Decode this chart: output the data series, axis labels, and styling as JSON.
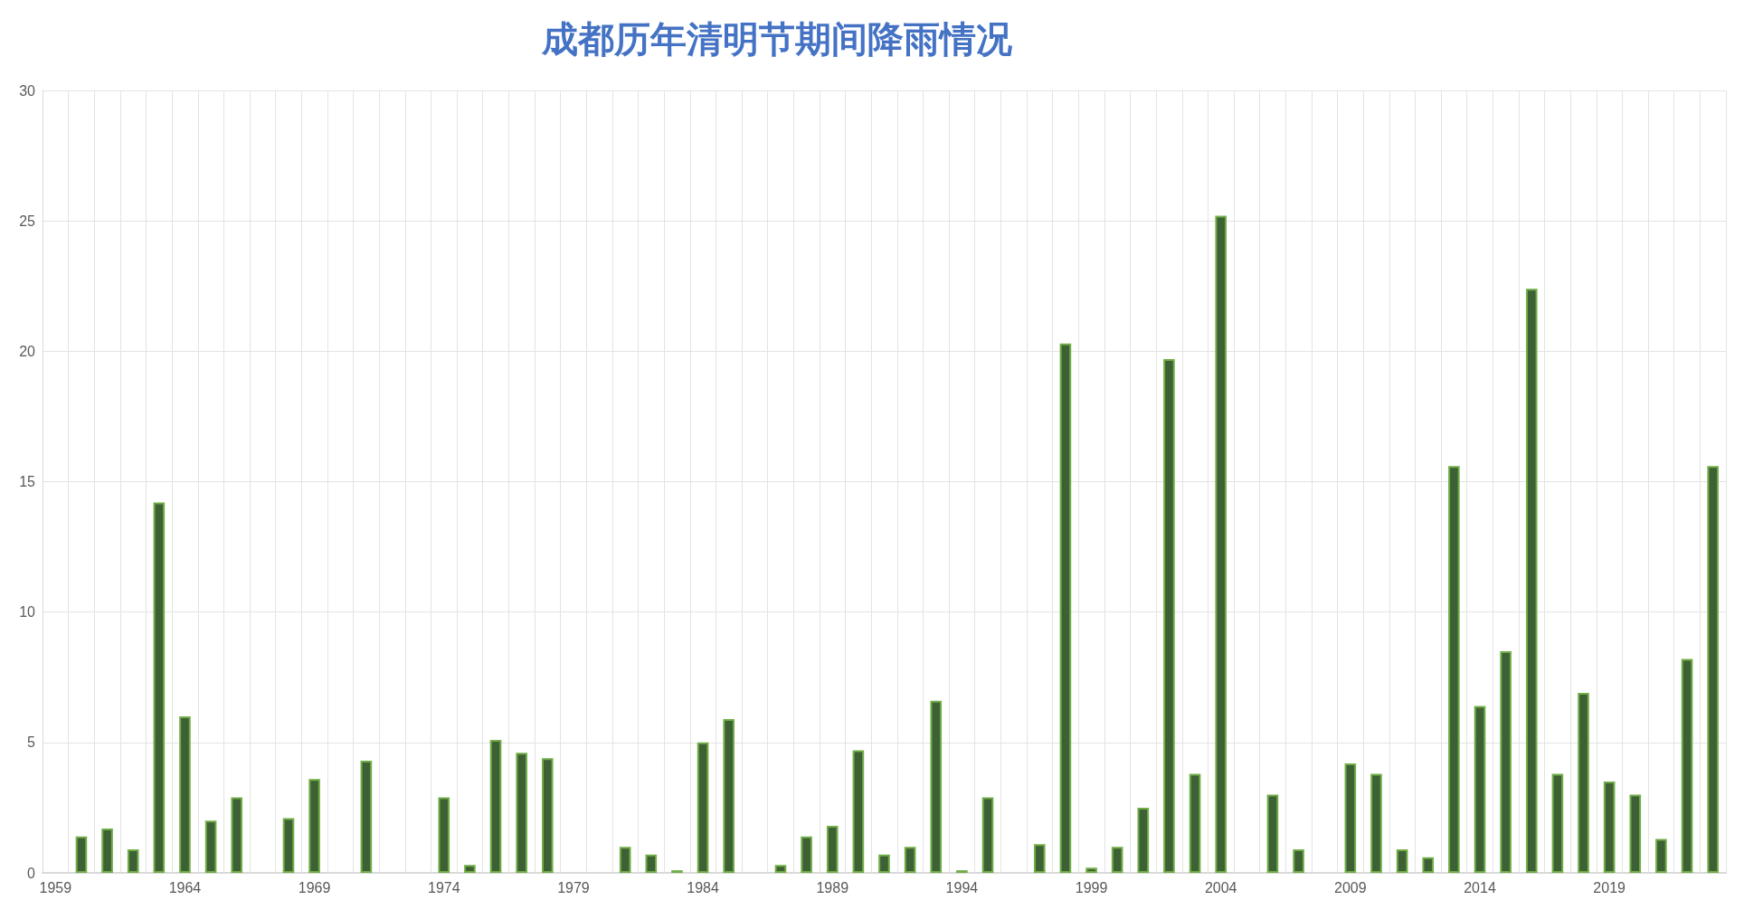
{
  "chart_data": {
    "type": "bar",
    "title": "成都历年清明节期间降雨情况",
    "categories": [
      "1959",
      null,
      null,
      null,
      null,
      "1964",
      null,
      null,
      null,
      null,
      "1969",
      null,
      null,
      null,
      null,
      "1974",
      null,
      null,
      null,
      null,
      "1979",
      null,
      null,
      null,
      null,
      "1984",
      null,
      null,
      null,
      null,
      "1989",
      null,
      null,
      null,
      null,
      "1994",
      null,
      null,
      null,
      null,
      "1999",
      null,
      null,
      null,
      null,
      "2004",
      null,
      null,
      null,
      null,
      "2009",
      null,
      null,
      null,
      null,
      "2014",
      null,
      null,
      null,
      null,
      "2019",
      null,
      null,
      null,
      null
    ],
    "values": [
      0,
      1.4,
      1.7,
      0.9,
      14.2,
      6.0,
      2.0,
      2.9,
      0,
      2.1,
      3.6,
      0,
      4.3,
      0,
      0,
      2.9,
      0.3,
      5.1,
      4.6,
      4.4,
      0,
      0,
      1.0,
      0.7,
      0.1,
      5.0,
      5.9,
      0,
      0.3,
      1.4,
      1.8,
      4.7,
      0.7,
      1.0,
      6.6,
      0.1,
      2.9,
      0,
      1.1,
      20.3,
      0.2,
      1.0,
      2.5,
      19.7,
      3.8,
      25.2,
      0,
      3.0,
      0.9,
      0,
      4.2,
      3.8,
      0.9,
      0.6,
      15.6,
      6.4,
      8.5,
      22.4,
      3.8,
      6.9,
      3.5,
      3.0,
      1.3,
      8.2,
      15.6
    ],
    "color": "#3e6035",
    "ylim": [
      0,
      30
    ],
    "yticks": [
      0,
      5,
      10,
      15,
      20,
      25,
      30
    ],
    "grid": true
  }
}
